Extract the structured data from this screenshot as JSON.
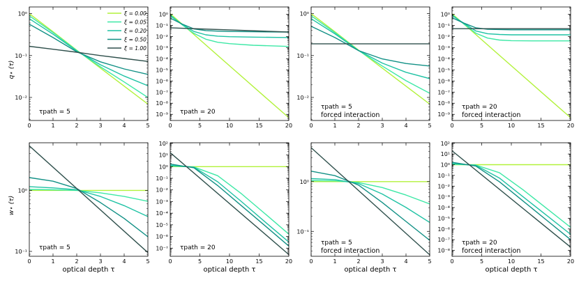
{
  "chart_data": {
    "type": "line",
    "legend": {
      "placement": "top-right of first panel",
      "entries": [
        "ξ = 0.00",
        "ξ = 0.05",
        "ξ = 0.20",
        "ξ = 0.50",
        "ξ = 1.00"
      ]
    },
    "colors": [
      "#b2f23a",
      "#3de8a6",
      "#1fc2a4",
      "#119085",
      "#2e4f4b"
    ],
    "xlabel": "optical depth τ",
    "ylabels": {
      "top": "q⋆ (τ)",
      "bottom": "w⋆ (τ)"
    },
    "panels": [
      {
        "id": "q-tau5",
        "row": 0,
        "col": 0,
        "xlim": [
          0,
          5
        ],
        "ylim_log10": [
          -2.55,
          0.16
        ],
        "xticks": [
          0,
          1,
          2,
          3,
          4,
          5
        ],
        "yticks": [
          {
            "e": 0,
            "label": "10⁰"
          },
          {
            "e": -1,
            "label": "10⁻¹"
          },
          {
            "e": -2,
            "label": "10⁻²"
          }
        ],
        "annotation": "τpath = 5",
        "annotation2": "",
        "series": [
          {
            "x": [
              0,
              1,
              2,
              3,
              4,
              5
            ],
            "log10_y": [
              0.0,
              -0.43,
              -0.87,
              -1.3,
              -1.73,
              -2.16
            ]
          },
          {
            "x": [
              0,
              1,
              2,
              3,
              4,
              5
            ],
            "log10_y": [
              -0.05,
              -0.45,
              -0.88,
              -1.27,
              -1.63,
              -2.0
            ]
          },
          {
            "x": [
              0,
              1,
              2,
              3,
              4,
              5
            ],
            "log10_y": [
              -0.12,
              -0.49,
              -0.89,
              -1.22,
              -1.49,
              -1.72
            ]
          },
          {
            "x": [
              0,
              1,
              2,
              3,
              4,
              5
            ],
            "log10_y": [
              -0.25,
              -0.57,
              -0.91,
              -1.15,
              -1.32,
              -1.45
            ]
          },
          {
            "x": [
              0,
              1,
              2,
              3,
              4,
              5
            ],
            "log10_y": [
              -0.78,
              -0.85,
              -0.92,
              -1.0,
              -1.07,
              -1.14
            ]
          }
        ]
      },
      {
        "id": "q-tau20",
        "row": 0,
        "col": 1,
        "xlim": [
          0,
          20
        ],
        "ylim_log10": [
          -9.55,
          0.65
        ],
        "xticks": [
          0,
          5,
          10,
          15,
          20
        ],
        "yticks": [
          {
            "e": 0,
            "label": "10⁰"
          },
          {
            "e": -1,
            "label": "10⁻¹"
          },
          {
            "e": -2,
            "label": "10⁻²"
          },
          {
            "e": -3,
            "label": "10⁻³"
          },
          {
            "e": -4,
            "label": "10⁻⁴"
          },
          {
            "e": -5,
            "label": "10⁻⁵"
          },
          {
            "e": -6,
            "label": "10⁻⁶"
          },
          {
            "e": -7,
            "label": "10⁻⁷"
          },
          {
            "e": -8,
            "label": "10⁻⁸"
          },
          {
            "e": -9,
            "label": "10⁻⁹"
          }
        ],
        "annotation": "τpath = 20",
        "annotation2": "",
        "series": [
          {
            "x": [
              0,
              4,
              8,
              12,
              16,
              20
            ],
            "log10_y": [
              0.05,
              -1.82,
              -3.7,
              -5.57,
              -7.44,
              -9.3
            ]
          },
          {
            "x": [
              0,
              2,
              4,
              6,
              8,
              10,
              14,
              20
            ],
            "log10_y": [
              -0.05,
              -0.95,
              -1.72,
              -2.25,
              -2.52,
              -2.65,
              -2.79,
              -2.9
            ]
          },
          {
            "x": [
              0,
              2,
              4,
              6,
              8,
              10,
              14,
              20
            ],
            "log10_y": [
              -0.15,
              -0.9,
              -1.55,
              -1.85,
              -1.97,
              -2.02,
              -2.06,
              -2.1
            ]
          },
          {
            "x": [
              0,
              2,
              4,
              6,
              8,
              10,
              14,
              20
            ],
            "log10_y": [
              -0.35,
              -0.88,
              -1.32,
              -1.47,
              -1.52,
              -1.55,
              -1.58,
              -1.6
            ]
          },
          {
            "x": [
              0,
              5,
              10,
              15,
              20
            ],
            "log10_y": [
              -1.22,
              -1.32,
              -1.41,
              -1.51,
              -1.6
            ]
          }
        ]
      },
      {
        "id": "q-tau5-forced",
        "row": 0,
        "col": 2,
        "xlim": [
          0,
          5
        ],
        "ylim_log10": [
          -2.55,
          0.16
        ],
        "xticks": [
          0,
          1,
          2,
          3,
          4,
          5
        ],
        "yticks": [
          {
            "e": 0,
            "label": "10⁰"
          },
          {
            "e": -1,
            "label": "10⁻¹"
          },
          {
            "e": -2,
            "label": "10⁻²"
          }
        ],
        "annotation": "τpath = 5",
        "annotation2": "forced interaction",
        "series": [
          {
            "x": [
              0,
              1,
              2,
              3,
              4,
              5
            ],
            "log10_y": [
              0.0,
              -0.43,
              -0.87,
              -1.3,
              -1.73,
              -2.16
            ]
          },
          {
            "x": [
              0,
              1,
              2,
              3,
              4,
              5
            ],
            "log10_y": [
              -0.05,
              -0.45,
              -0.88,
              -1.25,
              -1.6,
              -1.9
            ]
          },
          {
            "x": [
              0,
              1,
              2,
              3,
              4,
              5
            ],
            "log10_y": [
              -0.12,
              -0.48,
              -0.88,
              -1.18,
              -1.4,
              -1.55
            ]
          },
          {
            "x": [
              0,
              1,
              2,
              3,
              4,
              5
            ],
            "log10_y": [
              -0.3,
              -0.57,
              -0.88,
              -1.08,
              -1.19,
              -1.25
            ]
          },
          {
            "x": [
              0,
              5
            ],
            "log10_y": [
              -0.72,
              -0.72
            ]
          }
        ]
      },
      {
        "id": "q-tau20-forced",
        "row": 0,
        "col": 3,
        "xlim": [
          0,
          20
        ],
        "ylim_log10": [
          -9.55,
          0.65
        ],
        "xticks": [
          0,
          5,
          10,
          15,
          20
        ],
        "yticks": [
          {
            "e": 0,
            "label": "10⁰"
          },
          {
            "e": -1,
            "label": "10⁻¹"
          },
          {
            "e": -2,
            "label": "10⁻²"
          },
          {
            "e": -3,
            "label": "10⁻³"
          },
          {
            "e": -4,
            "label": "10⁻⁴"
          },
          {
            "e": -5,
            "label": "10⁻⁵"
          },
          {
            "e": -6,
            "label": "10⁻⁶"
          },
          {
            "e": -7,
            "label": "10⁻⁷"
          },
          {
            "e": -8,
            "label": "10⁻⁸"
          },
          {
            "e": -9,
            "label": "10⁻⁹"
          }
        ],
        "annotation": "τpath = 20",
        "annotation2": "forced interaction",
        "series": [
          {
            "x": [
              0,
              4,
              8,
              12,
              16,
              20
            ],
            "log10_y": [
              0.05,
              -1.82,
              -3.7,
              -5.57,
              -7.44,
              -9.3
            ]
          },
          {
            "x": [
              0,
              2,
              4,
              6,
              8,
              10,
              14,
              20
            ],
            "log10_y": [
              -0.05,
              -0.88,
              -1.7,
              -2.15,
              -2.32,
              -2.38,
              -2.4,
              -2.4
            ]
          },
          {
            "x": [
              0,
              2,
              4,
              6,
              8,
              10,
              14,
              20
            ],
            "log10_y": [
              -0.12,
              -0.82,
              -1.5,
              -1.75,
              -1.82,
              -1.85,
              -1.85,
              -1.85
            ]
          },
          {
            "x": [
              0,
              2,
              4,
              6,
              8,
              10,
              14,
              20
            ],
            "log10_y": [
              -0.32,
              -0.8,
              -1.22,
              -1.35,
              -1.38,
              -1.4,
              -1.4,
              -1.4
            ]
          },
          {
            "x": [
              0,
              20
            ],
            "log10_y": [
              -1.3,
              -1.3
            ]
          }
        ]
      },
      {
        "id": "w-tau5",
        "row": 1,
        "col": 0,
        "xlim": [
          0,
          5
        ],
        "ylim_log10": [
          -1.08,
          0.78
        ],
        "xticks": [
          0,
          1,
          2,
          3,
          4,
          5
        ],
        "yticks": [
          {
            "e": 0,
            "label": "10⁰"
          },
          {
            "e": -1,
            "label": "10⁻¹"
          }
        ],
        "annotation": "τpath = 5",
        "annotation2": "",
        "series": [
          {
            "x": [
              0,
              5
            ],
            "log10_y": [
              0.0,
              0.0
            ]
          },
          {
            "x": [
              0,
              1,
              2,
              3,
              4,
              5
            ],
            "log10_y": [
              0.015,
              0.01,
              0.0,
              -0.04,
              -0.1,
              -0.18
            ]
          },
          {
            "x": [
              0,
              1,
              2,
              3,
              4,
              5
            ],
            "log10_y": [
              0.06,
              0.04,
              0.01,
              -0.1,
              -0.25,
              -0.43
            ]
          },
          {
            "x": [
              0,
              1,
              2,
              3,
              4,
              5
            ],
            "log10_y": [
              0.21,
              0.15,
              0.03,
              -0.2,
              -0.46,
              -0.76
            ]
          },
          {
            "x": [
              0,
              5
            ],
            "log10_y": [
              0.73,
              -1.02
            ]
          }
        ]
      },
      {
        "id": "w-tau20",
        "row": 1,
        "col": 1,
        "xlim": [
          0,
          20
        ],
        "ylim_log10": [
          -7.7,
          2.05
        ],
        "xticks": [
          0,
          5,
          10,
          15,
          20
        ],
        "yticks": [
          {
            "e": 2,
            "label": "10²"
          },
          {
            "e": 1,
            "label": "10¹"
          },
          {
            "e": 0,
            "label": "10⁰"
          },
          {
            "e": -1,
            "label": "10⁻¹"
          },
          {
            "e": -2,
            "label": "10⁻²"
          },
          {
            "e": -3,
            "label": "10⁻³"
          },
          {
            "e": -4,
            "label": "10⁻⁴"
          },
          {
            "e": -5,
            "label": "10⁻⁵"
          },
          {
            "e": -6,
            "label": "10⁻⁶"
          },
          {
            "e": -7,
            "label": "10⁻⁷"
          }
        ],
        "annotation": "τpath = 20",
        "annotation2": "",
        "series": [
          {
            "x": [
              0,
              20
            ],
            "log10_y": [
              0.0,
              0.0
            ]
          },
          {
            "x": [
              0,
              4,
              8,
              12,
              16,
              20
            ],
            "log10_y": [
              0.05,
              -0.03,
              -0.78,
              -2.32,
              -4.05,
              -5.8
            ]
          },
          {
            "x": [
              0,
              4,
              8,
              12,
              16,
              20
            ],
            "log10_y": [
              0.12,
              -0.05,
              -1.3,
              -3.0,
              -4.75,
              -6.48
            ]
          },
          {
            "x": [
              0,
              4,
              8,
              12,
              16,
              20
            ],
            "log10_y": [
              0.22,
              -0.1,
              -1.62,
              -3.35,
              -5.08,
              -6.82
            ]
          },
          {
            "x": [
              0,
              20
            ],
            "log10_y": [
              1.2,
              -7.55
            ]
          }
        ]
      },
      {
        "id": "w-tau5-forced",
        "row": 1,
        "col": 2,
        "xlim": [
          0,
          5
        ],
        "ylim_log10": [
          -1.5,
          0.78
        ],
        "xticks": [
          0,
          1,
          2,
          3,
          4,
          5
        ],
        "yticks": [
          {
            "e": 0,
            "label": "10⁰"
          },
          {
            "e": -1,
            "label": "10⁻¹"
          }
        ],
        "annotation": "τpath = 5",
        "annotation2": "forced interaction",
        "series": [
          {
            "x": [
              0,
              5
            ],
            "log10_y": [
              0.0,
              0.0
            ]
          },
          {
            "x": [
              0,
              1,
              2,
              3,
              4,
              5
            ],
            "log10_y": [
              0.02,
              0.015,
              -0.02,
              -0.12,
              -0.27,
              -0.45
            ]
          },
          {
            "x": [
              0,
              1,
              2,
              3,
              4,
              5
            ],
            "log10_y": [
              0.06,
              0.04,
              -0.04,
              -0.25,
              -0.52,
              -0.82
            ]
          },
          {
            "x": [
              0,
              1,
              2,
              3,
              4,
              5
            ],
            "log10_y": [
              0.21,
              0.12,
              -0.07,
              -0.42,
              -0.8,
              -1.18
            ]
          },
          {
            "x": [
              0,
              5
            ],
            "log10_y": [
              0.68,
              -1.47
            ]
          }
        ]
      },
      {
        "id": "w-tau20-forced",
        "row": 1,
        "col": 3,
        "xlim": [
          0,
          20
        ],
        "ylim_log10": [
          -8.55,
          2.05
        ],
        "xticks": [
          0,
          5,
          10,
          15,
          20
        ],
        "yticks": [
          {
            "e": 2,
            "label": "10²"
          },
          {
            "e": 1,
            "label": "10¹"
          },
          {
            "e": 0,
            "label": "10⁰"
          },
          {
            "e": -1,
            "label": "10⁻¹"
          },
          {
            "e": -2,
            "label": "10⁻²"
          },
          {
            "e": -3,
            "label": "10⁻³"
          },
          {
            "e": -4,
            "label": "10⁻⁴"
          },
          {
            "e": -5,
            "label": "10⁻⁵"
          },
          {
            "e": -6,
            "label": "10⁻⁶"
          },
          {
            "e": -7,
            "label": "10⁻⁷"
          },
          {
            "e": -8,
            "label": "10⁻⁸"
          }
        ],
        "annotation": "τpath = 20",
        "annotation2": "forced interaction",
        "series": [
          {
            "x": [
              0,
              20
            ],
            "log10_y": [
              0.0,
              0.0
            ]
          },
          {
            "x": [
              0,
              4,
              8,
              12,
              16,
              20
            ],
            "log10_y": [
              0.05,
              -0.03,
              -0.75,
              -2.35,
              -4.1,
              -5.85
            ]
          },
          {
            "x": [
              0,
              4,
              8,
              12,
              16,
              20
            ],
            "log10_y": [
              0.12,
              -0.06,
              -1.25,
              -3.0,
              -4.75,
              -6.5
            ]
          },
          {
            "x": [
              0,
              4,
              8,
              12,
              16,
              20
            ],
            "log10_y": [
              0.22,
              -0.12,
              -1.6,
              -3.4,
              -5.2,
              -7.0
            ]
          },
          {
            "x": [
              0,
              20
            ],
            "log10_y": [
              1.3,
              -7.7
            ]
          }
        ]
      }
    ]
  }
}
